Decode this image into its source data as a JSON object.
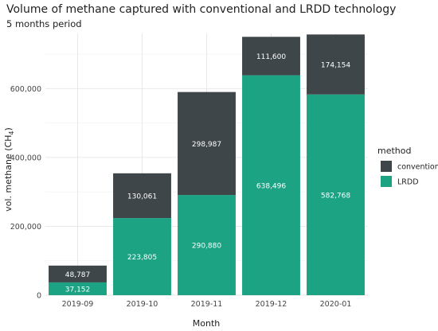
{
  "chart_data": {
    "type": "bar",
    "stacked": true,
    "title": "Volume of methane captured with conventional and LRDD technology",
    "subtitle": "5 months period",
    "xlabel": "Month",
    "ylabel_main": "vol. methane (CH",
    "ylabel_sub": "4",
    "ylabel_end": ")",
    "categories": [
      "2019-09",
      "2019-10",
      "2019-11",
      "2019-12",
      "2020-01"
    ],
    "series": [
      {
        "name": "LRDD",
        "color": "#1ba383",
        "values": [
          37152,
          223805,
          290880,
          638496,
          582768
        ]
      },
      {
        "name": "conventional",
        "color": "#3e4649",
        "values": [
          48787,
          130061,
          298987,
          111600,
          174154
        ]
      }
    ],
    "value_labels": {
      "LRDD": [
        "37,152",
        "223,805",
        "290,880",
        "638,496",
        "582,768"
      ],
      "conventional": [
        "48,787",
        "130,061",
        "298,987",
        "111,600",
        "174,154"
      ]
    },
    "ylim": [
      0,
      760000
    ],
    "yticks": [
      0,
      200000,
      400000,
      600000
    ],
    "ytick_labels": [
      "0",
      "200,000",
      "400,000",
      "600,000"
    ],
    "grid": true,
    "legend": {
      "title": "method",
      "placement": "right",
      "items": [
        {
          "label": "conventional",
          "color": "#3e4649"
        },
        {
          "label": "LRDD",
          "color": "#1ba383"
        }
      ]
    }
  }
}
